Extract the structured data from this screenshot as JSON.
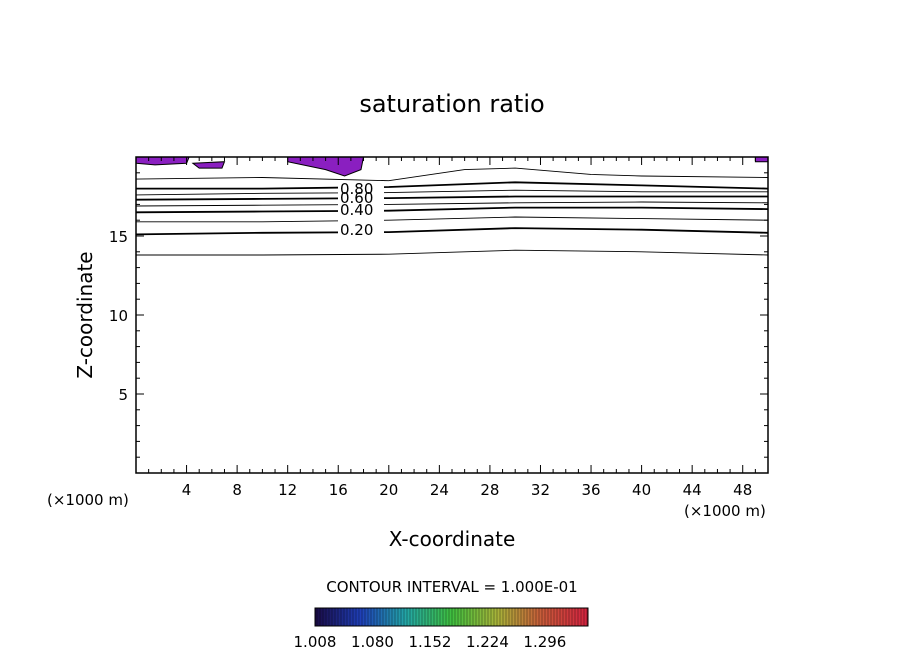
{
  "chart_data": {
    "type": "contour",
    "title": "saturation ratio",
    "xlabel": "X-coordinate",
    "ylabel": "Z-coordinate",
    "x_unit": "(×1000 m)",
    "xlim": [
      0,
      50
    ],
    "ylim": [
      0,
      20
    ],
    "x_ticks": [
      4,
      8,
      12,
      16,
      20,
      24,
      28,
      32,
      36,
      40,
      44,
      48
    ],
    "y_ticks": [
      5,
      10,
      15
    ],
    "contour_interval_label": "CONTOUR INTERVAL = 1.000E-01",
    "contour_labels": [
      "0.80",
      "0.60",
      "0.40",
      "0.20"
    ],
    "contours": [
      {
        "level": 0.1,
        "points": [
          [
            0,
            13.8
          ],
          [
            10,
            13.8
          ],
          [
            20,
            13.85
          ],
          [
            30,
            14.1
          ],
          [
            40,
            14.0
          ],
          [
            50,
            13.8
          ]
        ]
      },
      {
        "level": 0.2,
        "points": [
          [
            0,
            15.1
          ],
          [
            10,
            15.2
          ],
          [
            20,
            15.25
          ],
          [
            30,
            15.5
          ],
          [
            40,
            15.4
          ],
          [
            50,
            15.2
          ]
        ]
      },
      {
        "level": 0.3,
        "points": [
          [
            0,
            15.9
          ],
          [
            10,
            15.9
          ],
          [
            20,
            16.0
          ],
          [
            30,
            16.2
          ],
          [
            40,
            16.1
          ],
          [
            50,
            16.0
          ]
        ]
      },
      {
        "level": 0.4,
        "points": [
          [
            0,
            16.5
          ],
          [
            10,
            16.55
          ],
          [
            20,
            16.6
          ],
          [
            30,
            16.8
          ],
          [
            40,
            16.8
          ],
          [
            50,
            16.7
          ]
        ]
      },
      {
        "level": 0.5,
        "points": [
          [
            0,
            16.9
          ],
          [
            10,
            16.95
          ],
          [
            20,
            17.0
          ],
          [
            30,
            17.1
          ],
          [
            40,
            17.15
          ],
          [
            50,
            17.1
          ]
        ]
      },
      {
        "level": 0.6,
        "points": [
          [
            0,
            17.3
          ],
          [
            10,
            17.35
          ],
          [
            20,
            17.4
          ],
          [
            30,
            17.5
          ],
          [
            40,
            17.5
          ],
          [
            50,
            17.5
          ]
        ]
      },
      {
        "level": 0.7,
        "points": [
          [
            0,
            17.6
          ],
          [
            10,
            17.7
          ],
          [
            20,
            17.75
          ],
          [
            30,
            17.9
          ],
          [
            40,
            17.8
          ],
          [
            50,
            17.8
          ]
        ]
      },
      {
        "level": 0.8,
        "points": [
          [
            0,
            18.0
          ],
          [
            10,
            18.0
          ],
          [
            20,
            18.1
          ],
          [
            30,
            18.4
          ],
          [
            40,
            18.2
          ],
          [
            50,
            18.0
          ]
        ]
      },
      {
        "level": 0.9,
        "points": [
          [
            0,
            18.6
          ],
          [
            10,
            18.7
          ],
          [
            20,
            18.5
          ],
          [
            26,
            19.2
          ],
          [
            30,
            19.3
          ],
          [
            36,
            18.9
          ],
          [
            40,
            18.8
          ],
          [
            50,
            18.7
          ]
        ]
      }
    ],
    "shaded_regions": [
      {
        "value_range": [
          1.0,
          1.08
        ],
        "points": [
          [
            0,
            20
          ],
          [
            4.2,
            20
          ],
          [
            4.0,
            19.6
          ],
          [
            1.5,
            19.5
          ],
          [
            0,
            19.6
          ]
        ]
      },
      {
        "value_range": [
          1.0,
          1.08
        ],
        "points": [
          [
            4.5,
            19.6
          ],
          [
            7.0,
            19.7
          ],
          [
            6.8,
            19.3
          ],
          [
            5.0,
            19.3
          ]
        ]
      },
      {
        "value_range": [
          1.0,
          1.08
        ],
        "points": [
          [
            12.0,
            20
          ],
          [
            18.0,
            20
          ],
          [
            17.8,
            19.2
          ],
          [
            16.5,
            18.8
          ],
          [
            15.0,
            19.2
          ],
          [
            12.0,
            19.7
          ]
        ]
      },
      {
        "value_range": [
          1.0,
          1.08
        ],
        "points": [
          [
            49,
            20
          ],
          [
            50,
            20
          ],
          [
            50,
            19.7
          ],
          [
            49,
            19.7
          ]
        ]
      }
    ],
    "colorbar": {
      "tick_labels": [
        "1.008",
        "1.080",
        "1.152",
        "1.224",
        "1.296"
      ],
      "range": [
        1.008,
        1.35
      ],
      "colors": [
        "#1a0b45",
        "#1f3fb8",
        "#23a6a6",
        "#3fbf3f",
        "#a8b43a",
        "#c95a3a",
        "#d2223f"
      ]
    }
  }
}
